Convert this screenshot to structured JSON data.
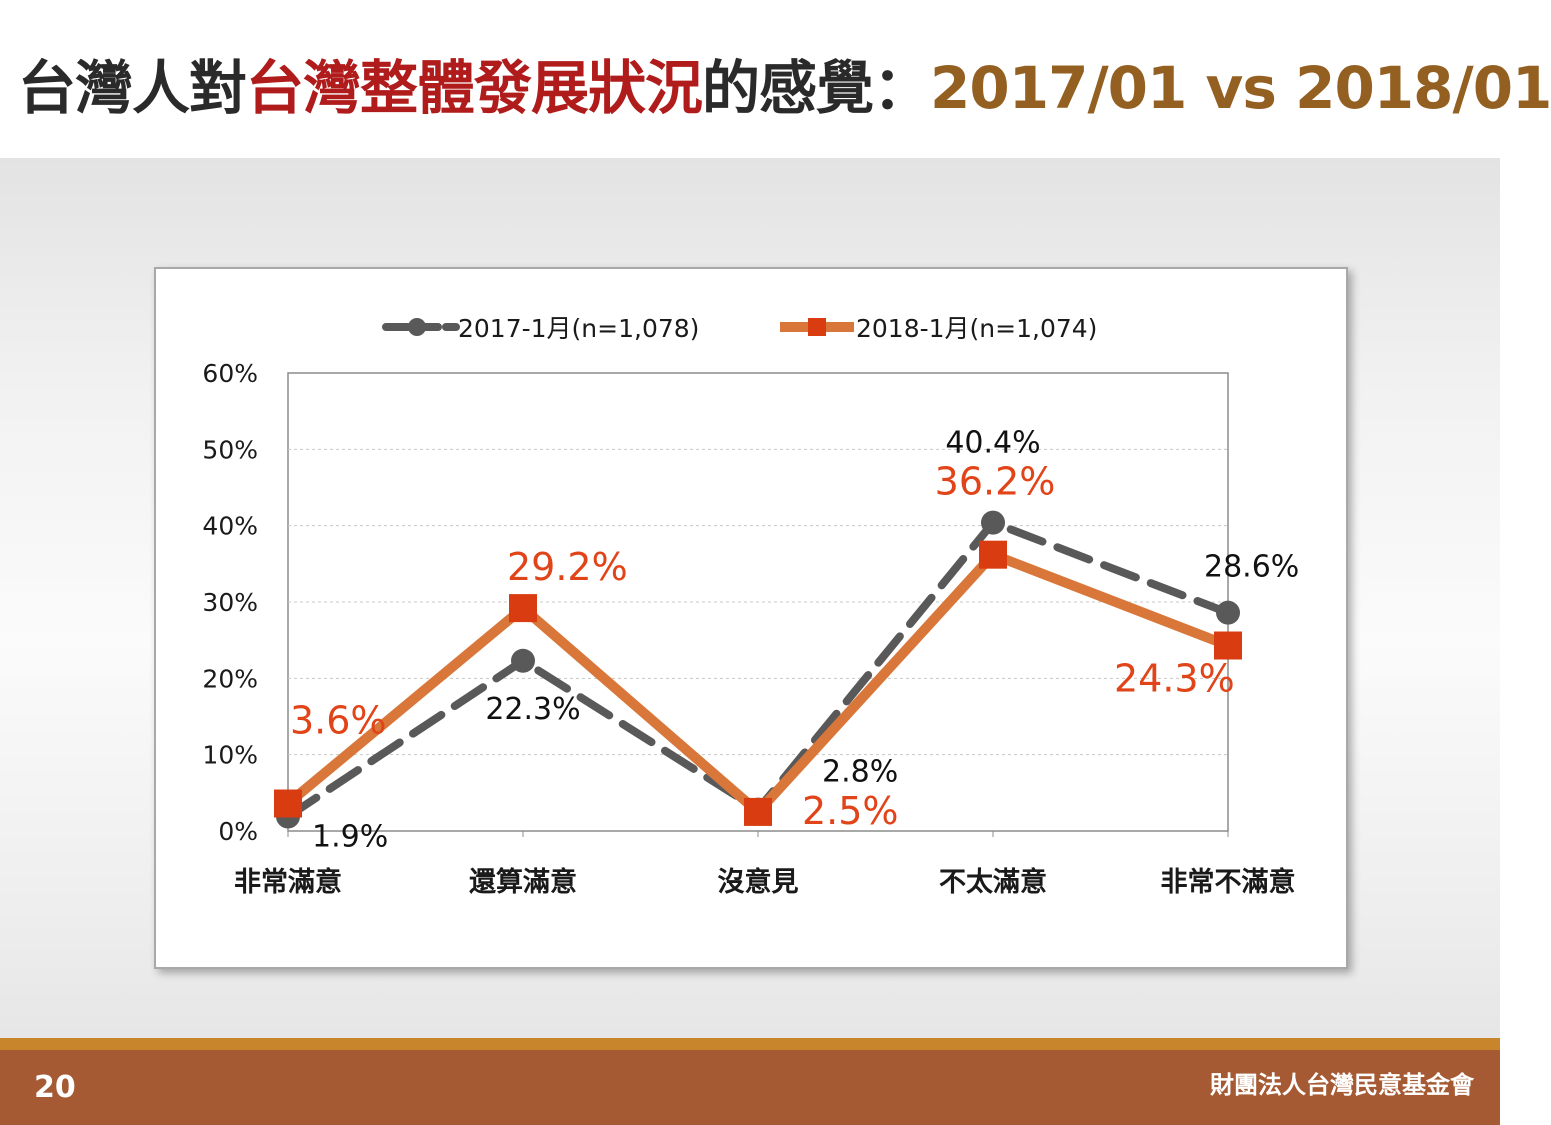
{
  "slide": {
    "title_part1": "台灣人對",
    "title_part2": "台灣整體發展狀況",
    "title_part3": "的感覺：",
    "title_part4": "2017/01 vs 2018/01",
    "page_number": "20",
    "organization": "財團法人台灣民意基金會"
  },
  "colors": {
    "series_2017": "#595959",
    "series_2018": "#d9773a",
    "marker_2018": "#d93c10",
    "label_2018": "#e04418"
  },
  "chart_data": {
    "type": "line",
    "categories": [
      "非常滿意",
      "還算滿意",
      "沒意見",
      "不太滿意",
      "非常不滿意"
    ],
    "ylim": [
      0,
      60
    ],
    "yticks": [
      0,
      10,
      20,
      30,
      40,
      50,
      60
    ],
    "ytick_labels": [
      "0%",
      "10%",
      "20%",
      "30%",
      "40%",
      "50%",
      "60%"
    ],
    "legend_position": "top",
    "grid": true,
    "series": [
      {
        "name": "2017-1月(n=1,078)",
        "values": [
          1.9,
          22.3,
          2.8,
          40.4,
          28.6
        ],
        "labels": [
          "1.9%",
          "22.3%",
          "2.8%",
          "40.4%",
          "28.6%"
        ]
      },
      {
        "name": "2018-1月(n=1,074)",
        "values": [
          3.6,
          29.2,
          2.5,
          36.2,
          24.3
        ],
        "labels": [
          "3.6%",
          "29.2%",
          "2.5%",
          "36.2%",
          "24.3%"
        ]
      }
    ]
  }
}
